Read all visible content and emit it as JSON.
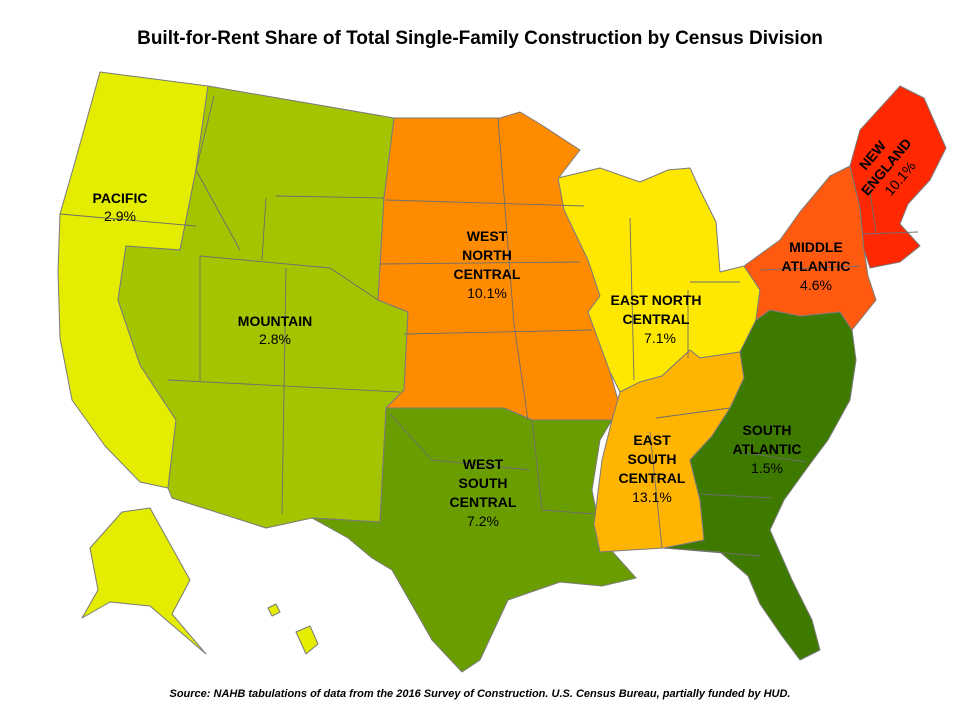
{
  "title": "Built-for-Rent Share of Total Single-Family Construction by Census Division",
  "source": "Source: NAHB tabulations of data from the 2016 Survey of Construction. U.S. Census Bureau, partially funded by HUD.",
  "divisions": {
    "pacific": {
      "lines": [
        "PACIFIC"
      ],
      "value": "2.9%",
      "color": "#e4ec00"
    },
    "mountain": {
      "lines": [
        "MOUNTAIN"
      ],
      "value": "2.8%",
      "color": "#a4c400"
    },
    "west_north_central": {
      "lines": [
        "WEST",
        "NORTH",
        "CENTRAL"
      ],
      "value": "10.1%",
      "color": "#ff8c00"
    },
    "east_north_central": {
      "lines": [
        "EAST NORTH",
        "CENTRAL"
      ],
      "value": "7.1%",
      "color": "#ffe800"
    },
    "middle_atlantic": {
      "lines": [
        "MIDDLE",
        "ATLANTIC"
      ],
      "value": "4.6%",
      "color": "#ff5a10"
    },
    "new_england": {
      "lines": [
        "NEW",
        "ENGLAND"
      ],
      "value": "10.1%",
      "color": "#ff2800"
    },
    "west_south_central": {
      "lines": [
        "WEST",
        "SOUTH",
        "CENTRAL"
      ],
      "value": "7.2%",
      "color": "#6a9e00"
    },
    "east_south_central": {
      "lines": [
        "EAST",
        "SOUTH",
        "CENTRAL"
      ],
      "value": "13.1%",
      "color": "#ffb400"
    },
    "south_atlantic": {
      "lines": [
        "SOUTH",
        "ATLANTIC"
      ],
      "value": "1.5%",
      "color": "#3e7a00"
    }
  }
}
